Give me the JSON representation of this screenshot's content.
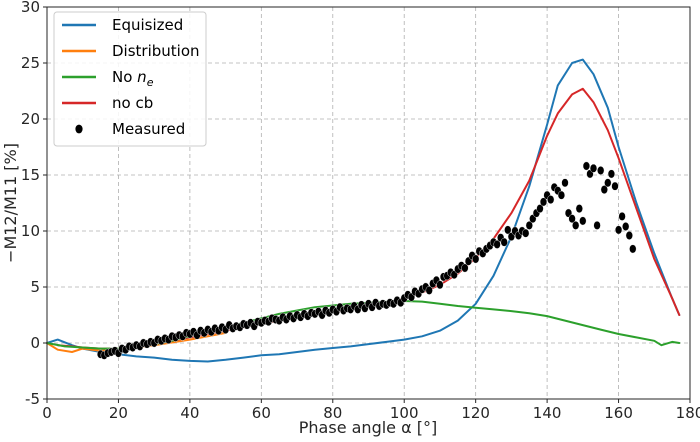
{
  "chart_data": {
    "type": "line",
    "xlabel": "Phase angle α [°]",
    "ylabel": "−M12/M11 [%]",
    "xlim": [
      0,
      180
    ],
    "ylim": [
      -5,
      30
    ],
    "xticks": [
      0,
      20,
      40,
      60,
      80,
      100,
      120,
      140,
      160,
      180
    ],
    "yticks": [
      -5,
      0,
      5,
      10,
      15,
      20,
      25,
      30
    ],
    "grid": true,
    "legend_position": "top-left",
    "legend_labels": [
      "Equisized",
      "Distribution",
      "No ",
      "no cb",
      "Measured"
    ],
    "legend_italic_suffix": "n",
    "legend_subscript": "e",
    "series": [
      {
        "name": "Equisized",
        "color": "#1f77b4",
        "x": [
          0,
          3,
          7,
          10,
          15,
          20,
          25,
          30,
          35,
          40,
          45,
          50,
          55,
          60,
          65,
          70,
          75,
          80,
          85,
          90,
          95,
          100,
          105,
          110,
          115,
          120,
          125,
          130,
          135,
          140,
          143,
          147,
          150,
          153,
          157,
          160,
          165,
          170,
          175,
          177
        ],
        "y": [
          0,
          0.3,
          -0.2,
          -0.5,
          -0.8,
          -1.0,
          -1.2,
          -1.3,
          -1.5,
          -1.6,
          -1.65,
          -1.5,
          -1.3,
          -1.1,
          -1.0,
          -0.8,
          -0.6,
          -0.45,
          -0.3,
          -0.1,
          0.1,
          0.3,
          0.6,
          1.1,
          2.0,
          3.5,
          6.0,
          9.5,
          14.0,
          19.5,
          23.0,
          25.0,
          25.3,
          24.0,
          21.0,
          17.5,
          12.5,
          8.0,
          4.0,
          2.5
        ]
      },
      {
        "name": "Distribution",
        "color": "#ff7f0e",
        "x": [
          0,
          3,
          7,
          10,
          15,
          20,
          25,
          30,
          40,
          50
        ],
        "y": [
          0,
          -0.6,
          -0.8,
          -0.5,
          -0.7,
          -0.6,
          -0.4,
          -0.2,
          0.3,
          0.9
        ]
      },
      {
        "name": "No ",
        "color": "#2ca02c",
        "x": [
          0,
          5,
          10,
          15,
          20,
          25,
          30,
          35,
          40,
          45,
          50,
          55,
          60,
          65,
          70,
          75,
          80,
          85,
          90,
          95,
          100,
          105,
          110,
          115,
          120,
          125,
          130,
          135,
          140,
          145,
          150,
          155,
          160,
          165,
          170,
          172,
          175,
          177
        ],
        "y": [
          0,
          -0.3,
          -0.4,
          -0.5,
          -0.5,
          -0.3,
          -0.1,
          0.2,
          0.6,
          1.0,
          1.4,
          1.8,
          2.2,
          2.6,
          2.9,
          3.2,
          3.35,
          3.5,
          3.6,
          3.7,
          3.75,
          3.7,
          3.5,
          3.3,
          3.15,
          3.0,
          2.85,
          2.65,
          2.4,
          2.0,
          1.6,
          1.2,
          0.8,
          0.5,
          0.2,
          -0.2,
          0.1,
          0.0
        ]
      },
      {
        "name": "no cb",
        "color": "#d62728",
        "x": [
          3,
          7,
          10,
          15,
          20,
          25,
          30,
          35,
          40,
          45,
          50,
          55,
          60,
          65,
          70,
          75,
          80,
          85,
          90,
          95,
          100,
          105,
          110,
          115,
          120,
          125,
          130,
          135,
          140,
          143,
          147,
          150,
          153,
          157,
          160,
          165,
          170,
          175,
          177
        ],
        "y": [
          -0.2,
          -0.3,
          -0.4,
          -0.5,
          -0.5,
          -0.3,
          -0.1,
          0.2,
          0.5,
          0.8,
          1.1,
          1.4,
          1.7,
          2.0,
          2.25,
          2.5,
          2.75,
          3.0,
          3.3,
          3.6,
          4.0,
          4.5,
          5.2,
          6.2,
          7.6,
          9.3,
          11.6,
          14.5,
          18.5,
          20.5,
          22.2,
          22.7,
          21.5,
          19.0,
          16.5,
          12.0,
          7.5,
          4.0,
          2.5
        ]
      }
    ],
    "measured": {
      "name": "Measured",
      "color": "#000000",
      "x": [
        15,
        16,
        17,
        18,
        19,
        20,
        21,
        22,
        23,
        24,
        25,
        26,
        27,
        28,
        29,
        30,
        31,
        32,
        33,
        34,
        35,
        36,
        37,
        38,
        39,
        40,
        41,
        42,
        43,
        44,
        45,
        46,
        47,
        48,
        49,
        50,
        51,
        52,
        53,
        54,
        55,
        56,
        57,
        58,
        59,
        60,
        61,
        62,
        63,
        64,
        65,
        66,
        67,
        68,
        69,
        70,
        71,
        72,
        73,
        74,
        75,
        76,
        77,
        78,
        79,
        80,
        81,
        82,
        83,
        84,
        85,
        86,
        87,
        88,
        89,
        90,
        91,
        92,
        93,
        94,
        95,
        96,
        97,
        98,
        99,
        100,
        101,
        102,
        103,
        104,
        105,
        106,
        107,
        108,
        109,
        110,
        111,
        112,
        113,
        114,
        115,
        116,
        117,
        118,
        119,
        120,
        121,
        122,
        123,
        124,
        125,
        126,
        127,
        128,
        129,
        130,
        131,
        132,
        133,
        134,
        135,
        136,
        137,
        138,
        139,
        140,
        141,
        142,
        143,
        144,
        145,
        146,
        147,
        148,
        149,
        150,
        151,
        152,
        153,
        154,
        155,
        156,
        157,
        158,
        159,
        160,
        161,
        162,
        163,
        164
      ],
      "y": [
        -1.0,
        -1.1,
        -0.9,
        -0.8,
        -0.7,
        -0.9,
        -0.5,
        -0.6,
        -0.3,
        -0.4,
        -0.2,
        -0.3,
        0.0,
        -0.1,
        0.1,
        0.0,
        0.3,
        0.2,
        0.4,
        0.3,
        0.6,
        0.5,
        0.7,
        0.6,
        0.9,
        0.8,
        1.0,
        0.7,
        1.1,
        0.9,
        1.2,
        1.0,
        1.3,
        1.1,
        1.4,
        1.2,
        1.6,
        1.3,
        1.5,
        1.4,
        1.7,
        1.6,
        1.8,
        1.5,
        1.9,
        1.8,
        2.0,
        1.9,
        2.2,
        2.1,
        2.0,
        2.3,
        2.1,
        2.4,
        2.2,
        2.5,
        2.3,
        2.6,
        2.4,
        2.7,
        2.6,
        2.8,
        2.5,
        2.9,
        2.7,
        3.0,
        2.8,
        3.2,
        2.9,
        3.1,
        3.0,
        3.3,
        3.0,
        3.4,
        3.1,
        3.5,
        3.2,
        3.6,
        3.3,
        3.5,
        3.4,
        3.6,
        3.5,
        3.8,
        3.6,
        4.0,
        4.3,
        4.1,
        4.6,
        4.4,
        4.8,
        5.0,
        4.7,
        5.3,
        5.6,
        5.2,
        5.9,
        6.0,
        6.3,
        6.1,
        6.6,
        6.9,
        6.7,
        7.3,
        7.8,
        7.5,
        8.2,
        8.0,
        8.4,
        8.7,
        9.0,
        8.8,
        9.4,
        9.0,
        10.1,
        9.5,
        10.0,
        9.6,
        10.0,
        9.8,
        10.5,
        11.1,
        11.6,
        12.0,
        12.6,
        13.2,
        12.8,
        13.9,
        13.6,
        13.2,
        14.3,
        11.6,
        11.1,
        10.5,
        12.0,
        10.9,
        15.8,
        15.1,
        15.6,
        10.5,
        15.4,
        13.7,
        14.3,
        15.1,
        14.0,
        10.1,
        11.3,
        10.4,
        9.6,
        8.4
      ]
    }
  }
}
